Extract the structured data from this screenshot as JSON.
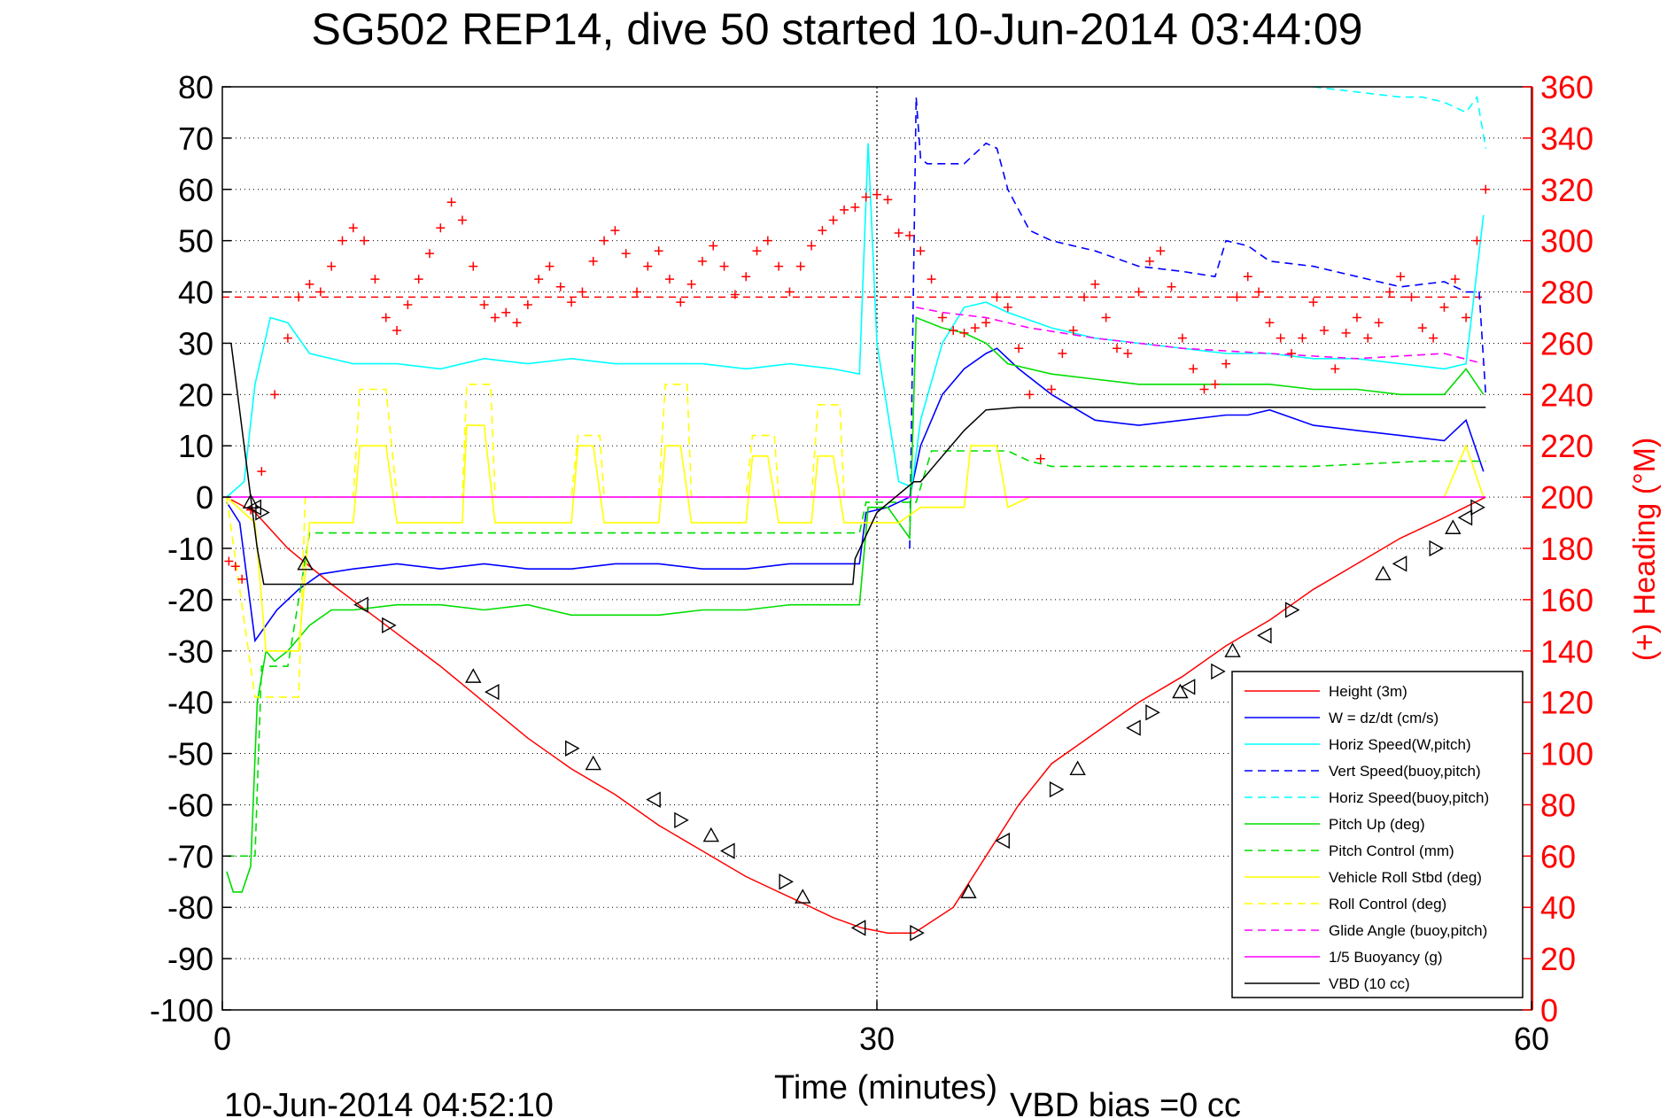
{
  "chart_data": {
    "type": "line",
    "title": "SG502 REP14, dive 50 started 10-Jun-2014 03:44:09",
    "xlabel": "Time (minutes)",
    "ylabel": "",
    "y2label": "(+) Heading (°M)",
    "xlim": [
      0,
      60
    ],
    "ylim": [
      -100,
      80
    ],
    "y2lim": [
      0,
      360
    ],
    "xticks": [
      0,
      30,
      60
    ],
    "yticks": [
      80,
      70,
      60,
      50,
      40,
      30,
      20,
      10,
      0,
      -10,
      -20,
      -30,
      -40,
      -50,
      -60,
      -70,
      -80,
      -90,
      -100
    ],
    "y2ticks": [
      360,
      340,
      320,
      300,
      280,
      260,
      240,
      220,
      200,
      180,
      160,
      140,
      120,
      100,
      80,
      60,
      40,
      20,
      0
    ],
    "grid": true,
    "legend_position": "lower-right",
    "footer_left": "10-Jun-2014 04:52:10",
    "footer_right": "VBD bias =0 cc",
    "colors": {
      "red": "#ff0000",
      "blue": "#0000ff",
      "cyan": "#00ffff",
      "green": "#00dd00",
      "yellow": "#ffff00",
      "magenta": "#ff00ff",
      "black": "#000000"
    },
    "series": [
      {
        "name": "Height (3m)",
        "color": "#ff0000",
        "dash": false,
        "x": [
          0.4,
          1.5,
          3.0,
          5.0,
          7.5,
          10.0,
          12.0,
          14.0,
          16.0,
          18.0,
          20.0,
          22.0,
          24.0,
          26.0,
          28.0,
          29.3,
          30.5,
          31.7,
          33.5,
          35.0,
          36.5,
          38.0,
          40.0,
          42.0,
          44.0,
          46.0,
          48.0,
          50.0,
          52.0,
          54.0,
          56.0,
          57.9
        ],
        "y": [
          -0.5,
          -3,
          -10,
          -17,
          -25,
          -33,
          -40,
          -47,
          -53,
          -58,
          -64,
          -69,
          -74,
          -78,
          -82,
          -84,
          -85,
          -85,
          -80,
          -70,
          -60,
          -52,
          -46,
          -40,
          -35,
          -29,
          -24,
          -18,
          -13,
          -8,
          -4,
          0
        ]
      },
      {
        "name": "W = dz/dt (cm/s)",
        "color": "#0000ff",
        "dash": false,
        "x": [
          0.2,
          0.8,
          1.5,
          2.5,
          3.5,
          4.5,
          6,
          8,
          10,
          12,
          14,
          16,
          18,
          20,
          22,
          24,
          26,
          28,
          29.2,
          29.5,
          30.5,
          31.5,
          32,
          33,
          34,
          35,
          35.5,
          36.5,
          38,
          40,
          42,
          44,
          46,
          47,
          48,
          50,
          52,
          54,
          56,
          57,
          57.8
        ],
        "y": [
          -1,
          -5,
          -28,
          -22,
          -18,
          -15,
          -14,
          -13,
          -14,
          -13,
          -14,
          -14,
          -13,
          -13,
          -14,
          -14,
          -13,
          -13,
          -13,
          -3,
          -2,
          0,
          10,
          20,
          25,
          28,
          29,
          25,
          20,
          15,
          14,
          15,
          16,
          16,
          17,
          14,
          13,
          12,
          11,
          15,
          5
        ]
      },
      {
        "name": "Horiz Speed(W,pitch)",
        "color": "#00ffff",
        "dash": false,
        "x": [
          0.2,
          1.0,
          1.5,
          2.2,
          3.0,
          4.0,
          6,
          8,
          10,
          12,
          14,
          16,
          18,
          20,
          22,
          24,
          26,
          28,
          29.2,
          29.6,
          30,
          31,
          31.6,
          32,
          33,
          34,
          35,
          36,
          38,
          40,
          42,
          44,
          46,
          48,
          50,
          52,
          54,
          56,
          57,
          57.8
        ],
        "y": [
          0,
          3,
          22,
          35,
          34,
          28,
          26,
          26,
          25,
          27,
          26,
          27,
          26,
          26,
          26,
          25,
          26,
          25,
          24,
          69,
          30,
          3,
          2,
          15,
          30,
          37,
          38,
          36,
          33,
          31,
          30,
          29,
          28,
          28,
          27,
          27,
          26,
          25,
          26,
          55
        ]
      },
      {
        "name": "Vert Speed(buoy,pitch)",
        "color": "#0000ff",
        "dash": true,
        "x": [
          31.5,
          31.8,
          32.0,
          32.3,
          34,
          35,
          35.5,
          36,
          37,
          38,
          40,
          42,
          44,
          45.5,
          46,
          47,
          48,
          50,
          52,
          54,
          56,
          57,
          57.6,
          57.9
        ],
        "y": [
          -10,
          78,
          66,
          65,
          65,
          69,
          68,
          60,
          52,
          50,
          48,
          45,
          44,
          43,
          50,
          49,
          46,
          45,
          43,
          41,
          42,
          40,
          40,
          20
        ]
      },
      {
        "name": "Horiz Speed(buoy,pitch)",
        "color": "#00ffff",
        "dash": true,
        "x": [
          50,
          52,
          54,
          55,
          56,
          57,
          57.5,
          57.9
        ],
        "y": [
          80,
          79,
          78,
          78,
          77,
          75,
          78,
          68
        ]
      },
      {
        "name": "Pitch Up (deg)",
        "color": "#00dd00",
        "dash": false,
        "x": [
          0.2,
          0.5,
          0.9,
          1.3,
          1.6,
          2.0,
          2.4,
          3.0,
          4,
          5,
          6,
          8,
          10,
          12,
          14,
          16,
          18,
          20,
          22,
          24,
          26,
          28,
          29.2,
          29.6,
          30.5,
          31.5,
          31.8,
          33,
          34,
          35,
          36,
          37,
          38,
          40,
          42,
          44,
          46,
          48,
          50,
          52,
          54,
          56,
          57,
          57.8
        ],
        "y": [
          -73,
          -77,
          -77,
          -72,
          -40,
          -30,
          -32,
          -30,
          -25,
          -22,
          -22,
          -21,
          -21,
          -22,
          -21,
          -23,
          -23,
          -23,
          -22,
          -22,
          -21,
          -21,
          -21,
          -2,
          -2,
          -8,
          35,
          33,
          32,
          30,
          26,
          25,
          24,
          23,
          22,
          22,
          22,
          22,
          21,
          21,
          20,
          20,
          25,
          20
        ]
      },
      {
        "name": "Pitch Control (mm)",
        "color": "#00dd00",
        "dash": true,
        "x": [
          0.2,
          1.5,
          1.8,
          3,
          4,
          6,
          10,
          20,
          29.2,
          29.5,
          31.8,
          32.5,
          36,
          37,
          38,
          44,
          46,
          48,
          50,
          55,
          57.9
        ],
        "y": [
          -70,
          -70,
          -33,
          -33,
          -7,
          -7,
          -7,
          -7,
          -7,
          -1,
          -1,
          9,
          9,
          7,
          6,
          6,
          6,
          6,
          6,
          7,
          7
        ]
      },
      {
        "name": "Vehicle Roll Stbd (deg)",
        "color": "#ffff00",
        "dash": false,
        "x": [
          0.2,
          1.5,
          2.0,
          3.5,
          4.0,
          5,
          6,
          6.3,
          7.5,
          8,
          10,
          11,
          11.2,
          12,
          12.5,
          14,
          16,
          16.3,
          17,
          17.5,
          19,
          20,
          20.3,
          21,
          21.5,
          23,
          24,
          24.3,
          25,
          25.5,
          26,
          27,
          27.3,
          28,
          28.5,
          29.2,
          30,
          31,
          32,
          33,
          34,
          34.3,
          35.5,
          36,
          37,
          38,
          40,
          42,
          44,
          46,
          48,
          50,
          52,
          54,
          56,
          57,
          57.8
        ],
        "y": [
          0,
          -5,
          -30,
          -30,
          -5,
          -5,
          -5,
          10,
          10,
          -5,
          -5,
          -5,
          14,
          14,
          -5,
          -5,
          -5,
          10,
          10,
          -5,
          -5,
          -5,
          10,
          10,
          -5,
          -5,
          -5,
          8,
          8,
          -5,
          -5,
          -5,
          8,
          8,
          -5,
          -5,
          -5,
          -5,
          -2,
          -2,
          -2,
          10,
          10,
          -2,
          0,
          0,
          0,
          0,
          0,
          0,
          0,
          0,
          0,
          0,
          0,
          10,
          0
        ]
      },
      {
        "name": "Roll Control (deg)",
        "color": "#ffff00",
        "dash": true,
        "x": [
          0.2,
          1.5,
          2.0,
          3.5,
          3.8,
          6,
          6.3,
          7.5,
          8,
          11,
          11.2,
          12.3,
          12.5,
          16,
          16.3,
          17.3,
          17.5,
          20,
          20.3,
          21.3,
          21.5,
          24,
          24.3,
          25.3,
          25.5,
          27,
          27.3,
          28.3,
          28.5,
          29.2
        ],
        "y": [
          0,
          -39,
          -39,
          -39,
          0,
          0,
          21,
          21,
          0,
          0,
          22,
          22,
          0,
          0,
          12,
          12,
          0,
          0,
          22,
          22,
          0,
          0,
          12,
          12,
          0,
          0,
          18,
          18,
          0,
          0
        ]
      },
      {
        "name": "Glide Angle (buoy,pitch)",
        "color": "#ff00ff",
        "dash": true,
        "x": [
          31.8,
          33,
          35,
          37,
          40,
          44,
          48,
          52,
          56,
          57.8
        ],
        "y": [
          37,
          36,
          35,
          33,
          31,
          29,
          28,
          27,
          28,
          26
        ]
      },
      {
        "name": "1/5 Buoyancy (g)",
        "color": "#ff00ff",
        "dash": false,
        "x": [
          0,
          57.9
        ],
        "y": [
          0,
          0
        ]
      },
      {
        "name": "VBD (10 cc)",
        "color": "#000000",
        "dash": false,
        "x": [
          0.4,
          1.6,
          1.9,
          28.9,
          29.0,
          30.0,
          31.7,
          32.0,
          33.0,
          34.0,
          35.0,
          36.5,
          57.9
        ],
        "y": [
          30,
          -10,
          -17,
          -17,
          -12,
          -3,
          3,
          3,
          8,
          13,
          17,
          17.5,
          17.5
        ]
      }
    ],
    "reference_lines": [
      {
        "axis": "y2",
        "value": 278,
        "color": "#ff0000",
        "dash": true
      },
      {
        "axis": "x",
        "value": 30,
        "color": "#000000",
        "dash": "dotted"
      }
    ],
    "heading_points": {
      "color": "#ff0000",
      "axis": "y2",
      "marker": "+",
      "x": [
        0.3,
        0.6,
        0.9,
        1.3,
        1.8,
        2.4,
        3.0,
        3.5,
        4.0,
        4.5,
        5.0,
        5.5,
        6.0,
        6.5,
        7.0,
        7.5,
        8.0,
        8.5,
        9.0,
        9.5,
        10.0,
        10.5,
        11.0,
        11.5,
        12.0,
        12.5,
        13.0,
        13.5,
        14.0,
        14.5,
        15.0,
        15.5,
        16.0,
        16.5,
        17.0,
        17.5,
        18.0,
        18.5,
        19.0,
        19.5,
        20.0,
        20.5,
        21.0,
        21.5,
        22.0,
        22.5,
        23.0,
        23.5,
        24.0,
        24.5,
        25.0,
        25.5,
        26.0,
        26.5,
        27.0,
        27.5,
        28.0,
        28.5,
        29.0,
        29.5,
        30.0,
        30.5,
        31.0,
        31.5,
        32.0,
        32.5,
        33.0,
        33.5,
        34.0,
        34.5,
        35.0,
        35.5,
        36.0,
        36.5,
        37.0,
        37.5,
        38.0,
        38.5,
        39.0,
        39.5,
        40.0,
        40.5,
        41.0,
        41.5,
        42.0,
        42.5,
        43.0,
        43.5,
        44.0,
        44.5,
        45.0,
        45.5,
        46.0,
        46.5,
        47.0,
        47.5,
        48.0,
        48.5,
        49.0,
        49.5,
        50.0,
        50.5,
        51.0,
        51.5,
        52.0,
        52.5,
        53.0,
        53.5,
        54.0,
        54.5,
        55.0,
        55.5,
        56.0,
        56.5,
        57.0,
        57.5,
        57.9
      ],
      "y": [
        175,
        173,
        168,
        195,
        210,
        240,
        262,
        278,
        283,
        280,
        290,
        300,
        305,
        300,
        285,
        270,
        265,
        275,
        285,
        295,
        305,
        315,
        308,
        290,
        275,
        270,
        272,
        268,
        275,
        285,
        290,
        282,
        276,
        280,
        292,
        300,
        304,
        295,
        280,
        290,
        296,
        285,
        276,
        283,
        292,
        298,
        290,
        279,
        286,
        296,
        300,
        290,
        280,
        290,
        298,
        304,
        308,
        312,
        313,
        317,
        318,
        316,
        303,
        302,
        296,
        285,
        270,
        265,
        264,
        266,
        268,
        278,
        274,
        258,
        240,
        215,
        242,
        256,
        265,
        278,
        283,
        270,
        258,
        256,
        280,
        292,
        296,
        282,
        262,
        250,
        242,
        244,
        252,
        278,
        286,
        280,
        268,
        262,
        256,
        262,
        276,
        265,
        250,
        264,
        270,
        262,
        268,
        280,
        286,
        278,
        266,
        262,
        274,
        285,
        270,
        300,
        320
      ]
    },
    "triangle_markers": {
      "color": "#000000",
      "x": [
        1.3,
        1.5,
        1.8,
        3.8,
        6.4,
        7.6,
        11.5,
        12.4,
        16.0,
        17.0,
        19.8,
        21.0,
        22.4,
        23.2,
        25.8,
        26.6,
        29.2,
        31.8,
        34.2,
        35.8,
        38.2,
        39.2,
        41.8,
        42.6,
        43.9,
        44.3,
        45.6,
        46.3,
        47.8,
        49.0,
        53.2,
        54.0,
        55.6,
        56.4,
        57.0,
        57.5
      ],
      "y": [
        -1,
        -2,
        -3,
        -13,
        -21,
        -25,
        -35,
        -38,
        -49,
        -52,
        -59,
        -63,
        -66,
        -69,
        -75,
        -78,
        -84,
        -85,
        -77,
        -67,
        -57,
        -53,
        -45,
        -42,
        -38,
        -37,
        -34,
        -30,
        -27,
        -22,
        -15,
        -13,
        -10,
        -6,
        -4,
        -2
      ]
    }
  }
}
